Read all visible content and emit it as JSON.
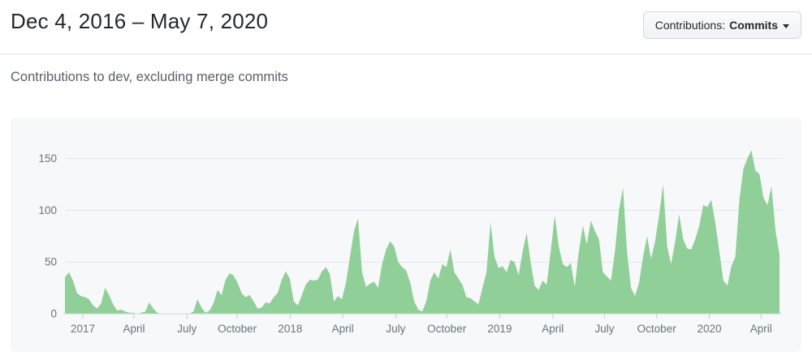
{
  "header": {
    "title": "Dec 4, 2016 – May 7, 2020",
    "filter_button": {
      "label_prefix": "Contributions:",
      "selected": "Commits"
    }
  },
  "subtitle": "Contributions to dev, excluding merge commits",
  "chart_data": {
    "type": "area",
    "title": "",
    "xlabel": "",
    "ylabel": "",
    "legend": "none",
    "grid": true,
    "panel_background": "#f6f8fa",
    "series": [
      {
        "name": "Commits",
        "color": "#90cf97"
      }
    ],
    "x_unit": "week",
    "x_range_label": [
      "Dec 4, 2016",
      "May 7, 2020"
    ],
    "ylim": [
      0,
      175
    ],
    "yticks": [
      0,
      50,
      100,
      150
    ],
    "xticks": [
      {
        "label": "2017",
        "week": 4.45
      },
      {
        "label": "April",
        "week": 17.2
      },
      {
        "label": "July",
        "week": 30.4
      },
      {
        "label": "October",
        "week": 42.9
      },
      {
        "label": "2018",
        "week": 56.1
      },
      {
        "label": "April",
        "week": 69.2
      },
      {
        "label": "July",
        "week": 82.4
      },
      {
        "label": "October",
        "week": 95.1
      },
      {
        "label": "2019",
        "week": 108.3
      },
      {
        "label": "April",
        "week": 121.5
      },
      {
        "label": "July",
        "week": 134.4
      },
      {
        "label": "October",
        "week": 147.4
      },
      {
        "label": "2020",
        "week": 160.5
      },
      {
        "label": "April",
        "week": 173.4
      }
    ],
    "weekly_values": [
      35,
      40,
      32,
      20,
      17,
      16,
      14,
      8,
      5,
      10,
      25,
      18,
      9,
      3,
      4,
      2,
      1,
      1,
      0,
      1,
      2,
      11,
      5,
      1,
      0,
      0,
      0,
      0,
      0,
      0,
      0,
      0,
      2,
      14,
      6,
      1,
      3,
      10,
      23,
      18,
      33,
      39,
      37,
      30,
      20,
      16,
      18,
      12,
      5,
      6,
      11,
      10,
      16,
      20,
      33,
      41,
      34,
      12,
      8,
      18,
      28,
      33,
      32,
      33,
      41,
      45,
      38,
      12,
      17,
      14,
      30,
      55,
      80,
      92,
      40,
      26,
      29,
      31,
      25,
      48,
      62,
      70,
      65,
      50,
      45,
      42,
      30,
      12,
      4,
      2,
      12,
      32,
      40,
      34,
      48,
      45,
      62,
      40,
      34,
      28,
      16,
      15,
      12,
      9,
      25,
      40,
      88,
      55,
      44,
      46,
      40,
      52,
      50,
      37,
      60,
      78,
      50,
      27,
      23,
      32,
      28,
      60,
      95,
      65,
      48,
      45,
      49,
      26,
      60,
      85,
      67,
      90,
      80,
      72,
      40,
      36,
      32,
      60,
      100,
      122,
      60,
      25,
      17,
      30,
      55,
      75,
      53,
      70,
      95,
      125,
      65,
      48,
      70,
      96,
      72,
      63,
      62,
      72,
      85,
      105,
      103,
      110,
      88,
      60,
      32,
      27,
      46,
      55,
      110,
      140,
      150,
      158,
      138,
      135,
      112,
      105,
      123,
      80,
      57
    ]
  }
}
